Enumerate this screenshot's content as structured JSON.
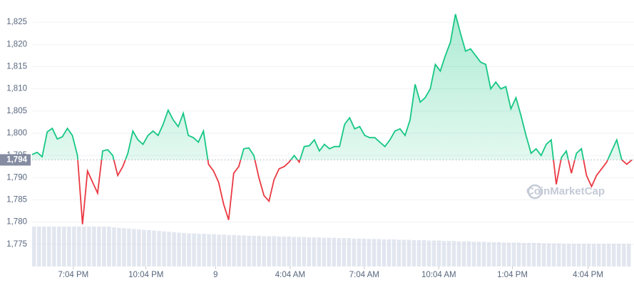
{
  "chart_data": {
    "type": "line",
    "series": [
      {
        "name": null,
        "color": "#16c784",
        "below_color": "#ea3943",
        "values": [
          1795.2,
          1795.7,
          1794.7,
          1800.3,
          1801.1,
          1798.7,
          1799.2,
          1801.1,
          1799.5,
          1795,
          1779.5,
          1791.5,
          1789,
          1786.5,
          1796,
          1796.3,
          1795,
          1790.5,
          1792.5,
          1795.5,
          1800.5,
          1798.5,
          1797.5,
          1799.5,
          1800.5,
          1799.5,
          1802,
          1805.2,
          1803,
          1801.5,
          1804.5,
          1799.5,
          1799,
          1798,
          1800.5,
          1793,
          1791.5,
          1789,
          1784,
          1780.5,
          1791,
          1792.5,
          1796.5,
          1796.7,
          1795,
          1790,
          1786,
          1784.7,
          1789.5,
          1792,
          1792.5,
          1793.5,
          1795,
          1793.5,
          1797,
          1797.2,
          1798.5,
          1796,
          1797.5,
          1796.5,
          1797,
          1797,
          1802,
          1803.5,
          1801,
          1801.5,
          1799.5,
          1799,
          1799,
          1798,
          1797,
          1798.5,
          1800.5,
          1801,
          1799.5,
          1803,
          1811,
          1807,
          1808,
          1810,
          1815.5,
          1814,
          1817.5,
          1820.5,
          1826.8,
          1822.5,
          1818.5,
          1819,
          1817.5,
          1816,
          1815.5,
          1810,
          1811.5,
          1810,
          1810.5,
          1805.5,
          1808,
          1804,
          1799.5,
          1795.5,
          1796.5,
          1795,
          1797.5,
          1798.5,
          1788.5,
          1794.5,
          1796,
          1791,
          1795.5,
          1796.5,
          1790.5,
          1788,
          1790.5,
          1792,
          1793.5,
          1796,
          1798.5,
          1794,
          1793,
          1794
        ]
      }
    ],
    "volume": {
      "color": "#cfd6e4",
      "values": [
        100,
        100,
        100,
        100,
        100,
        100,
        100,
        100,
        100,
        100,
        100,
        100,
        100,
        100,
        100,
        100,
        98,
        97,
        96,
        95,
        94,
        93,
        92,
        91,
        90,
        89,
        88,
        87,
        86,
        85,
        84,
        83,
        83,
        82,
        82,
        81,
        81,
        80,
        80,
        79,
        79,
        78,
        78,
        77,
        77,
        77,
        76,
        76,
        76,
        75,
        75,
        75,
        74,
        74,
        74,
        73,
        73,
        73,
        72,
        72,
        72,
        71,
        71,
        71,
        70,
        70,
        70,
        69,
        69,
        69,
        68,
        68,
        68,
        67,
        67,
        67,
        66,
        66,
        66,
        65,
        65,
        65,
        64,
        64,
        64,
        63,
        63,
        63,
        62,
        62,
        62,
        61,
        61,
        61,
        60,
        60,
        60,
        60,
        59,
        59,
        59,
        59,
        58,
        58,
        58,
        58,
        57,
        57,
        57,
        57,
        57,
        57,
        57,
        57,
        57,
        57,
        57,
        57,
        57,
        57
      ]
    },
    "reference": {
      "value": 1794,
      "label": "1,794"
    },
    "xlim": [
      0,
      119
    ],
    "xticks": [
      {
        "value": 8.18,
        "label": "7:04 PM"
      },
      {
        "value": 22.6,
        "label": "10:04 PM"
      },
      {
        "value": 36.4,
        "label": "9"
      },
      {
        "value": 51.2,
        "label": "4:04 AM"
      },
      {
        "value": 65.9,
        "label": "7:04 AM"
      },
      {
        "value": 80.7,
        "label": "10:04 AM"
      },
      {
        "value": 95.3,
        "label": "1:04 PM"
      },
      {
        "value": 110.3,
        "label": "4:04 PM"
      }
    ],
    "ylim": [
      1770,
      1830
    ],
    "yticks": [
      {
        "value": 1775,
        "label": "1,775"
      },
      {
        "value": 1780,
        "label": "1,780"
      },
      {
        "value": 1785,
        "label": "1,785"
      },
      {
        "value": 1790,
        "label": "1,790"
      },
      {
        "value": 1795,
        "label": "1,795"
      },
      {
        "value": 1800,
        "label": "1,800"
      },
      {
        "value": 1805,
        "label": "1,805"
      },
      {
        "value": 1810,
        "label": "1,810"
      },
      {
        "value": 1815,
        "label": "1,815"
      },
      {
        "value": 1820,
        "label": "1,820"
      },
      {
        "value": 1825,
        "label": "1,825"
      }
    ],
    "grid": true,
    "watermark": "CoinMarketCap"
  }
}
